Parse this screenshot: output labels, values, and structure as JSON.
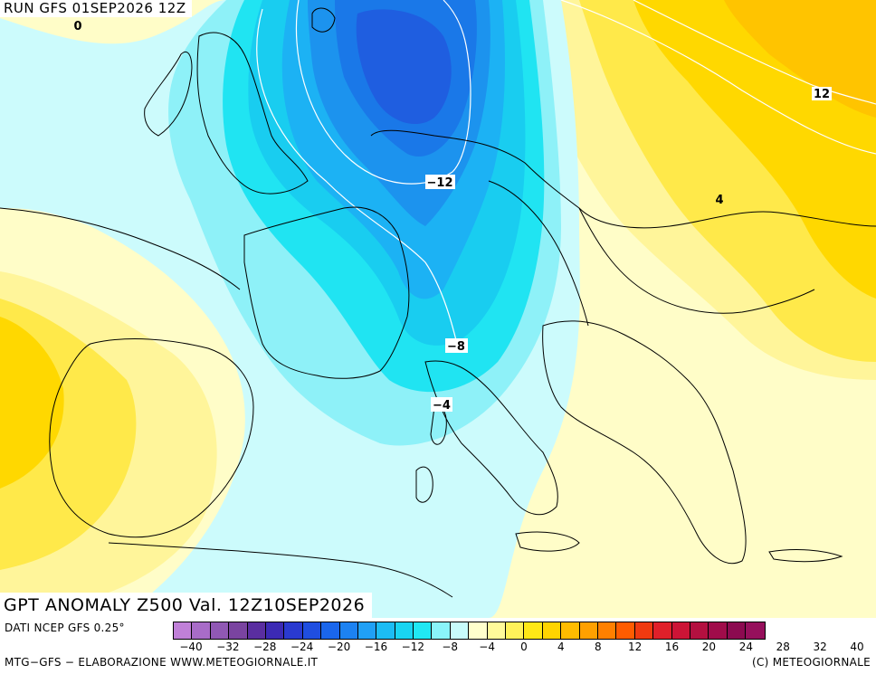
{
  "header": {
    "run_title": "RUN GFS 01SEP2026 12Z"
  },
  "map": {
    "title": "GPT ANOMALY Z500 Val. 12Z10SEP2026",
    "variable": "500 hPa geopotential height anomaly",
    "contour_labels": [
      {
        "text": "0"
      },
      {
        "text": "12"
      },
      {
        "text": "−12"
      },
      {
        "text": "4"
      },
      {
        "text": "−8"
      },
      {
        "text": "−4"
      }
    ]
  },
  "legend": {
    "colors": [
      "#c080d8",
      "#a86cc8",
      "#9058b4",
      "#7a44a0",
      "#5a2ea0",
      "#3c2ab4",
      "#2a3ad0",
      "#1f4ee0",
      "#1a66ec",
      "#1c82f2",
      "#20a0f6",
      "#1cbcf4",
      "#19d4f2",
      "#20e8f4",
      "#8af4fa",
      "#c8fcfc",
      "#ffffcc",
      "#fffa9a",
      "#fff25a",
      "#ffe816",
      "#ffd400",
      "#ffbc00",
      "#ffa000",
      "#ff8000",
      "#ff5c00",
      "#f03a10",
      "#e0202a",
      "#cc1436",
      "#b41040",
      "#a00c4a",
      "#8c0a50",
      "#96105c"
    ],
    "tick_labels": [
      "−40",
      "−32",
      "−28",
      "−24",
      "−20",
      "−16",
      "−12",
      "−8",
      "−4",
      "0",
      "4",
      "8",
      "12",
      "16",
      "20",
      "24",
      "28",
      "32",
      "40"
    ]
  },
  "footer": {
    "source": "DATI NCEP GFS 0.25°",
    "credit": "MTG−GFS − ELABORAZIONE WWW.METEOGIORNALE.IT",
    "copyright": "(C) METEOGIORNALE"
  }
}
